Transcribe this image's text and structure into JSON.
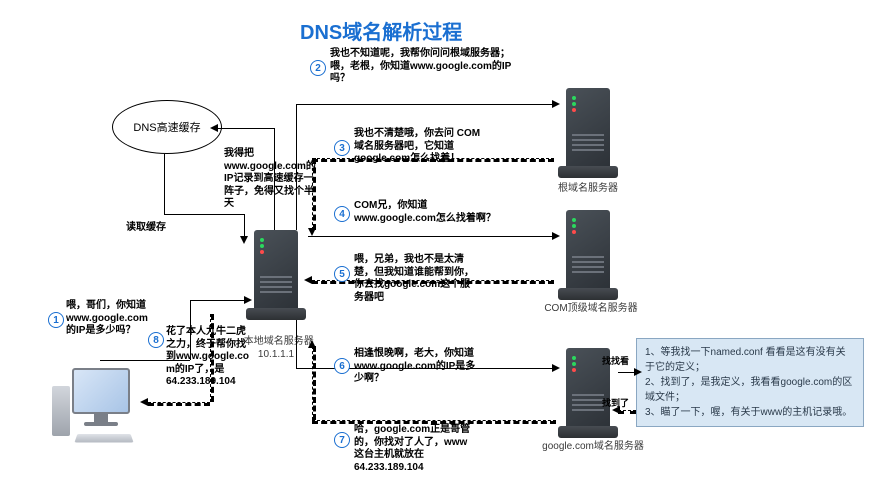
{
  "title": "DNS域名解析过程",
  "colors": {
    "title": "#1a6fd1",
    "step_circle": "#1a6fd1",
    "note_bg": "#d8e7f4",
    "note_border": "#8aa7c2",
    "arrow": "#000000"
  },
  "cache": {
    "label": "DNS高速缓存"
  },
  "cache_link": "读取缓存",
  "cache_store": "我得把\nwww.google.com的\nIP记录到高速缓存一\n阵子，免得又找个半\n天",
  "client": {
    "label": ""
  },
  "local_server": {
    "label": "本地域名服务器",
    "ip": "10.1.1.1"
  },
  "root_server": {
    "label": "根域名服务器"
  },
  "com_server": {
    "label": "COM顶级域名服务器"
  },
  "google_server": {
    "label": "google.com域名服务器"
  },
  "steps": {
    "1": "喂，哥们，你知道\nwww.google.com\n的IP是多少吗？",
    "2": "我也不知道呢，我帮你问问根域服务器；\n喂，老根，你知道www.google.com的IP\n吗？",
    "3": "我也不清楚哦，你去问 COM\n域名服务器吧，它知道\ngoogle.com怎么找着！",
    "4": "COM兄，你知道\nwww.google.com怎么找着啊？",
    "5": "喂，兄弟，我也不是太清\n楚，但我知道谁能帮到你，\n你去找google.com这个服\n务器吧",
    "6": "相逢恨晚啊，老大，你知道\nwww.google.com的IP是多\n少啊？",
    "7": "哈，google.com正是哥管\n的，你找对了人了，www\n这台主机就放在\n64.233.189.104",
    "8": "花了本人九牛二虎\n之力，终于帮你找\n到www.google.co\nm的IP了，是\n64.233.189.104"
  },
  "edge_labels": {
    "find": "找找看",
    "found": "找到了"
  },
  "notes": "1、等我找一下named.conf 看看是这有没有关\n于它的定义；\n2、找到了，是我定义，我看看google.com的区\n域文件；\n3、瞄了一下，喔，有关于www的主机记录哦。"
}
